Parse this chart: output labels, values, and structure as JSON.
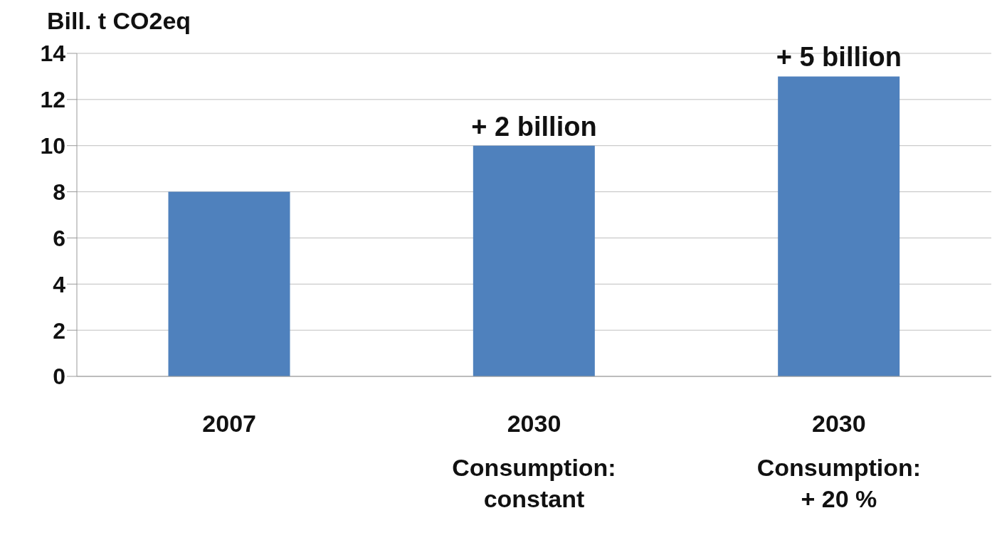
{
  "chart_data": {
    "type": "bar",
    "ylabel": "Bill. t CO2eq",
    "categories": [
      "2007",
      "2030\nConsumption:\nconstant",
      "2030\nConsumption:\n+ 20 %"
    ],
    "values": [
      8,
      10,
      13
    ],
    "color": "#4f81bd",
    "ylim": [
      0,
      14
    ],
    "yticks": [
      0,
      2,
      4,
      6,
      8,
      10,
      12,
      14
    ],
    "grid": "y",
    "annotations": [
      {
        "text": "+ 2 billion",
        "x": "2030\nConsumption:\nconstant",
        "y": 10
      },
      {
        "text": "+ 5 billion",
        "x": "2030\nConsumption:\n+ 20 %",
        "y": 13
      }
    ]
  }
}
